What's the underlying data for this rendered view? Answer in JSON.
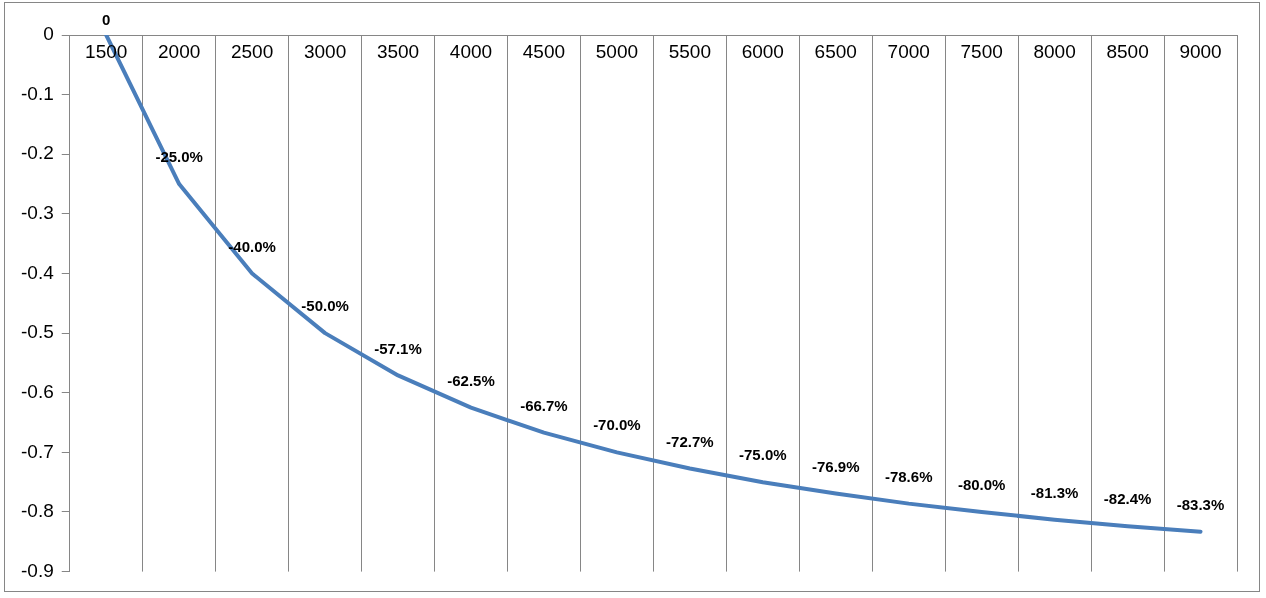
{
  "chart_data": {
    "type": "line",
    "categories": [
      "1500",
      "2000",
      "2500",
      "3000",
      "3500",
      "4000",
      "4500",
      "5000",
      "5500",
      "6000",
      "6500",
      "7000",
      "7500",
      "8000",
      "8500",
      "9000"
    ],
    "series": [
      {
        "color": "#4a7ebb",
        "values": [
          0,
          -0.25,
          -0.4,
          -0.5,
          -0.571,
          -0.625,
          -0.667,
          -0.7,
          -0.727,
          -0.75,
          -0.769,
          -0.786,
          -0.8,
          -0.813,
          -0.824,
          -0.833
        ],
        "value_labels": [
          "0",
          "-25.0%",
          "-40.0%",
          "-50.0%",
          "-57.1%",
          "-62.5%",
          "-66.7%",
          "-70.0%",
          "-72.7%",
          "-75.0%",
          "-76.9%",
          "-78.6%",
          "-80.0%",
          "-81.3%",
          "-82.4%",
          "-83.3%"
        ]
      }
    ],
    "ylim": [
      -0.9,
      0
    ],
    "yticks": [
      0,
      -0.1,
      -0.2,
      -0.3,
      -0.4,
      -0.5,
      -0.6,
      -0.7,
      -0.8,
      -0.9
    ],
    "grid": "x",
    "legend": false,
    "marker": "none",
    "line_style": "solid"
  }
}
